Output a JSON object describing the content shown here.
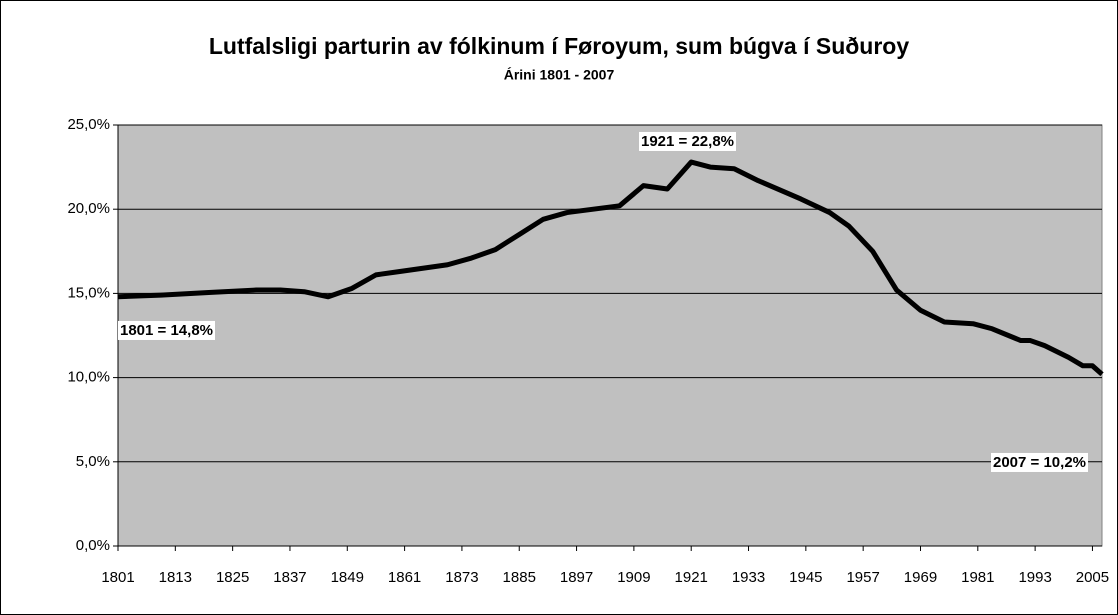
{
  "chart_data": {
    "type": "line",
    "title": "Lutfalsligi parturin av fólkinum í Føroyum, sum búgva í Suðuroy",
    "subtitle": "Árini 1801 - 2007",
    "annotations": [
      "1801 = 14,8%",
      "1921 = 22,8%",
      "2007 = 10,2%"
    ],
    "x": [
      1801,
      1810,
      1820,
      1830,
      1835,
      1840,
      1845,
      1850,
      1855,
      1860,
      1870,
      1875,
      1880,
      1885,
      1890,
      1895,
      1906,
      1911,
      1916,
      1921,
      1925,
      1930,
      1935,
      1944,
      1950,
      1954,
      1959,
      1964,
      1969,
      1974,
      1980,
      1984,
      1990,
      1992,
      1995,
      2000,
      2003,
      2005,
      2007
    ],
    "series": [
      {
        "color": "#000000",
        "values": [
          14.8,
          14.9,
          15.05,
          15.2,
          15.2,
          15.1,
          14.8,
          15.3,
          16.1,
          16.3,
          16.7,
          17.1,
          17.6,
          18.5,
          19.4,
          19.8,
          20.2,
          21.4,
          21.2,
          22.8,
          22.5,
          22.4,
          21.7,
          20.6,
          19.8,
          19.0,
          17.5,
          15.2,
          14.0,
          13.3,
          13.2,
          12.9,
          12.2,
          12.2,
          11.9,
          11.2,
          10.7,
          10.7,
          10.2
        ]
      }
    ],
    "xlim": [
      1801,
      2007
    ],
    "xticks": [
      1801,
      1813,
      1825,
      1837,
      1849,
      1861,
      1873,
      1885,
      1897,
      1909,
      1921,
      1933,
      1945,
      1957,
      1969,
      1981,
      1993,
      2005
    ],
    "ylim": [
      0,
      25
    ],
    "yticks": [
      {
        "value": 0,
        "label": "0,0%"
      },
      {
        "value": 5,
        "label": "5,0%"
      },
      {
        "value": 10,
        "label": "10,0%"
      },
      {
        "value": 15,
        "label": "15,0%"
      },
      {
        "value": 20,
        "label": "20,0%"
      },
      {
        "value": 25,
        "label": "25,0%"
      }
    ],
    "grid": true,
    "plot_background": "#c0c0c0"
  }
}
